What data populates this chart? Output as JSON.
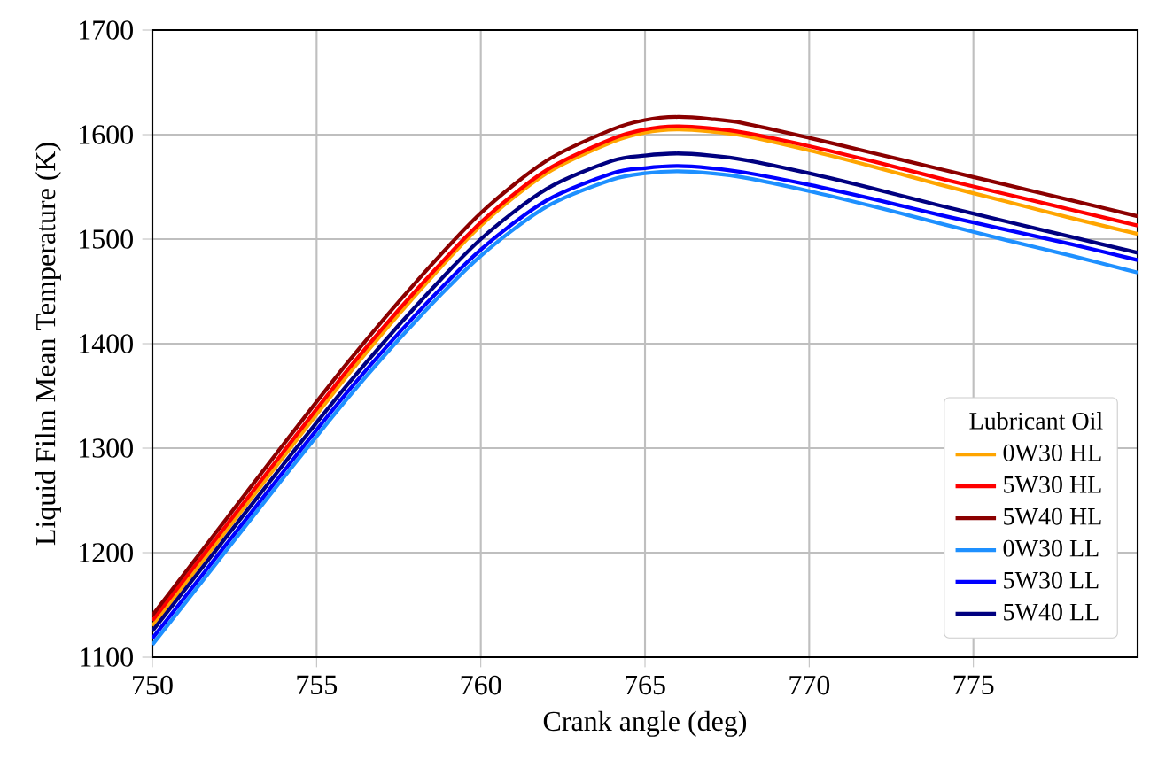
{
  "chart_data": {
    "type": "line",
    "xlabel": "Crank angle (deg)",
    "ylabel": "Liquid Film Mean Temperature (K)",
    "legend_title": "Lubricant Oil",
    "x": [
      750,
      752,
      754,
      756,
      758,
      760,
      762,
      764,
      765,
      766,
      767,
      768,
      770,
      772,
      774,
      776,
      778,
      780
    ],
    "xlim": [
      750,
      780
    ],
    "xticks": [
      750,
      755,
      760,
      765,
      770,
      775
    ],
    "ylim": [
      1100,
      1700
    ],
    "yticks": [
      1100,
      1200,
      1300,
      1400,
      1500,
      1600,
      1700
    ],
    "grid": true,
    "legend": "bottom right",
    "marker": "none",
    "line_style": "solid",
    "series": [
      {
        "name": "0W30 HL",
        "color": "#ffa500",
        "values": [
          1130,
          1211,
          1292,
          1372,
          1446,
          1513,
          1563,
          1593,
          1602,
          1605,
          1603,
          1599,
          1585,
          1569,
          1552,
          1536,
          1520,
          1505
        ]
      },
      {
        "name": "5W30 HL",
        "color": "#ff0000",
        "values": [
          1135,
          1216,
          1297,
          1377,
          1450,
          1516,
          1566,
          1596,
          1605,
          1608,
          1606,
          1602,
          1589,
          1574,
          1558,
          1543,
          1528,
          1513
        ]
      },
      {
        "name": "5W40 HL",
        "color": "#8b0000",
        "values": [
          1140,
          1222,
          1304,
          1384,
          1458,
          1525,
          1575,
          1605,
          1614,
          1617,
          1615,
          1611,
          1597,
          1582,
          1567,
          1552,
          1537,
          1522
        ]
      },
      {
        "name": "0W30 LL",
        "color": "#1e90ff",
        "values": [
          1112,
          1192,
          1272,
          1350,
          1421,
          1484,
          1531,
          1557,
          1563,
          1565,
          1563,
          1559,
          1546,
          1531,
          1515,
          1499,
          1484,
          1468
        ]
      },
      {
        "name": "5W30 LL",
        "color": "#0000ff",
        "values": [
          1118,
          1198,
          1278,
          1356,
          1427,
          1490,
          1537,
          1563,
          1568,
          1570,
          1568,
          1564,
          1552,
          1538,
          1523,
          1509,
          1495,
          1480
        ]
      },
      {
        "name": "5W40 LL",
        "color": "#000080",
        "values": [
          1125,
          1205,
          1285,
          1363,
          1435,
          1500,
          1548,
          1575,
          1580,
          1582,
          1580,
          1576,
          1563,
          1548,
          1532,
          1517,
          1502,
          1487
        ]
      }
    ]
  }
}
